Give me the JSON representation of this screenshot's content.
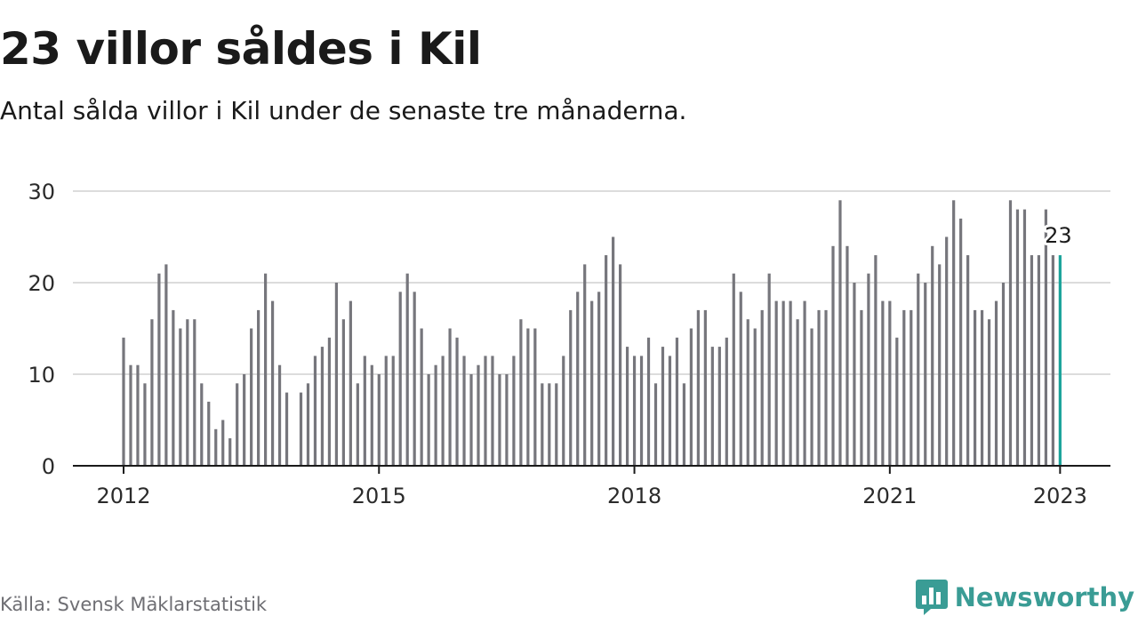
{
  "header": {
    "title": "23 villor såldes i Kil",
    "subtitle": "Antal sålda villor i Kil under de senaste tre månaderna."
  },
  "footer": {
    "source": "Källa: Svensk Mäklarstatistik",
    "brand": "Newsworthy",
    "brand_icon": "bar-chart-speech-bubble-icon"
  },
  "colors": {
    "bar": "#76767c",
    "highlight": "#1aa39a",
    "grid": "#dcdcdc",
    "axis": "#1a1a1a",
    "brand": "#3a9c95"
  },
  "chart_data": {
    "type": "bar",
    "title": "23 villor såldes i Kil",
    "subtitle": "Antal sålda villor i Kil under de senaste tre månaderna.",
    "xlabel": "",
    "ylabel": "",
    "ylim": [
      0,
      30
    ],
    "yticks": [
      0,
      10,
      20,
      30
    ],
    "grid": true,
    "x_unit": "month",
    "x_start": "2012-01",
    "x_end": "2023-01",
    "xticks": [
      {
        "label": "2012",
        "date": "2012-01"
      },
      {
        "label": "2015",
        "date": "2015-01"
      },
      {
        "label": "2018",
        "date": "2018-01"
      },
      {
        "label": "2021",
        "date": "2021-01"
      },
      {
        "label": "2023",
        "date": "2023-01"
      }
    ],
    "values": [
      14,
      11,
      11,
      9,
      16,
      21,
      22,
      17,
      15,
      16,
      16,
      9,
      7,
      4,
      5,
      3,
      9,
      10,
      15,
      17,
      21,
      18,
      11,
      8,
      null,
      8,
      9,
      12,
      13,
      14,
      20,
      16,
      18,
      9,
      12,
      11,
      10,
      12,
      12,
      19,
      21,
      19,
      15,
      10,
      11,
      12,
      15,
      14,
      12,
      10,
      11,
      12,
      12,
      10,
      10,
      12,
      16,
      15,
      15,
      9,
      9,
      9,
      12,
      17,
      19,
      22,
      18,
      19,
      23,
      25,
      22,
      13,
      12,
      12,
      14,
      9,
      13,
      12,
      14,
      9,
      15,
      17,
      17,
      13,
      13,
      14,
      21,
      19,
      16,
      15,
      17,
      21,
      18,
      18,
      18,
      16,
      18,
      15,
      17,
      17,
      24,
      29,
      24,
      20,
      17,
      21,
      23,
      18,
      18,
      14,
      17,
      17,
      21,
      20,
      24,
      22,
      25,
      29,
      27,
      23,
      17,
      17,
      16,
      18,
      20,
      29,
      28,
      28,
      23,
      23,
      28,
      23,
      23
    ],
    "highlight": {
      "index": 132,
      "value": 23,
      "label": "23"
    }
  }
}
